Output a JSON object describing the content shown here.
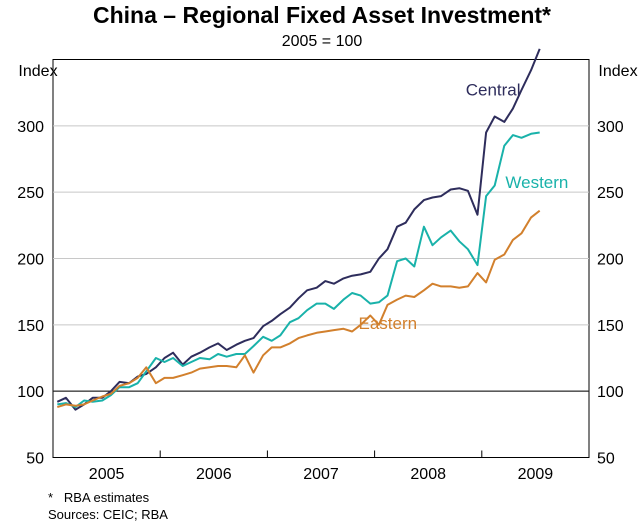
{
  "title": "China – Regional Fixed Asset Investment*",
  "subtitle": "2005 = 100",
  "notes": [
    "*   RBA estimates",
    "Sources: CEIC; RBA"
  ],
  "chart_data": {
    "type": "line",
    "title": "China – Regional Fixed Asset Investment*",
    "subtitle": "2005 = 100",
    "ylabel_left": "Index",
    "ylabel_right": "Index",
    "ylim": [
      50,
      350
    ],
    "yticks": [
      50,
      100,
      150,
      200,
      250,
      300
    ],
    "xlim": [
      2004.5,
      2009.5
    ],
    "xtick_labels": [
      {
        "label": "2005",
        "x": 2005.0
      },
      {
        "label": "2006",
        "x": 2006.0
      },
      {
        "label": "2007",
        "x": 2007.0
      },
      {
        "label": "2008",
        "x": 2008.0
      },
      {
        "label": "2009",
        "x": 2009.0
      }
    ],
    "year_boundaries": [
      2005.5,
      2006.5,
      2007.5,
      2008.5
    ],
    "reference_line": 100,
    "series": [
      {
        "name": "Central",
        "color": "#2e2d5c",
        "label_at": [
          2008.35,
          323
        ],
        "x": [
          2004.54,
          2004.62,
          2004.71,
          2004.79,
          2004.87,
          2004.96,
          2005.04,
          2005.12,
          2005.21,
          2005.29,
          2005.37,
          2005.46,
          2005.54,
          2005.62,
          2005.71,
          2005.79,
          2005.87,
          2005.96,
          2006.04,
          2006.12,
          2006.21,
          2006.29,
          2006.37,
          2006.46,
          2006.54,
          2006.62,
          2006.71,
          2006.79,
          2006.87,
          2006.96,
          2007.04,
          2007.12,
          2007.21,
          2007.29,
          2007.37,
          2007.46,
          2007.54,
          2007.62,
          2007.71,
          2007.79,
          2007.87,
          2007.96,
          2008.04,
          2008.12,
          2008.21,
          2008.29,
          2008.37,
          2008.46,
          2008.54,
          2008.62,
          2008.71,
          2008.79,
          2008.87,
          2008.96,
          2009.04
        ],
        "values": [
          92,
          95,
          86,
          90,
          95,
          95,
          100,
          107,
          106,
          111,
          113,
          118,
          125,
          129,
          120,
          126,
          129,
          133,
          136,
          131,
          135,
          138,
          140,
          149,
          153,
          158,
          163,
          170,
          176,
          178,
          183,
          181,
          185,
          187,
          188,
          190,
          200,
          207,
          224,
          227,
          237,
          244,
          246,
          247,
          252,
          253,
          251,
          233,
          295,
          307,
          303,
          313,
          327,
          342,
          358
        ]
      },
      {
        "name": "Western",
        "color": "#19b2aa",
        "label_at": [
          2008.72,
          253
        ],
        "x": [
          2004.54,
          2004.62,
          2004.71,
          2004.79,
          2004.87,
          2004.96,
          2005.04,
          2005.12,
          2005.21,
          2005.29,
          2005.37,
          2005.46,
          2005.54,
          2005.62,
          2005.71,
          2005.79,
          2005.87,
          2005.96,
          2006.04,
          2006.12,
          2006.21,
          2006.29,
          2006.37,
          2006.46,
          2006.54,
          2006.62,
          2006.71,
          2006.79,
          2006.87,
          2006.96,
          2007.04,
          2007.12,
          2007.21,
          2007.29,
          2007.37,
          2007.46,
          2007.54,
          2007.62,
          2007.71,
          2007.79,
          2007.87,
          2007.96,
          2008.04,
          2008.12,
          2008.21,
          2008.29,
          2008.37,
          2008.46,
          2008.54,
          2008.62,
          2008.71,
          2008.79,
          2008.87,
          2008.96,
          2009.04
        ],
        "values": [
          90,
          91,
          88,
          93,
          92,
          93,
          97,
          103,
          103,
          106,
          115,
          125,
          122,
          125,
          119,
          122,
          125,
          124,
          128,
          126,
          128,
          128,
          134,
          141,
          138,
          142,
          152,
          155,
          161,
          166,
          166,
          162,
          169,
          174,
          172,
          166,
          167,
          172,
          198,
          200,
          194,
          224,
          210,
          216,
          221,
          213,
          207,
          195,
          247,
          255,
          285,
          293,
          291,
          294,
          295
        ]
      },
      {
        "name": "Eastern",
        "color": "#d2802d",
        "label_at": [
          2007.35,
          147
        ],
        "x": [
          2004.54,
          2004.62,
          2004.71,
          2004.79,
          2004.87,
          2004.96,
          2005.04,
          2005.12,
          2005.21,
          2005.29,
          2005.37,
          2005.46,
          2005.54,
          2005.62,
          2005.71,
          2005.79,
          2005.87,
          2005.96,
          2006.04,
          2006.12,
          2006.21,
          2006.29,
          2006.37,
          2006.46,
          2006.54,
          2006.62,
          2006.71,
          2006.79,
          2006.87,
          2006.96,
          2007.04,
          2007.12,
          2007.21,
          2007.29,
          2007.37,
          2007.46,
          2007.54,
          2007.62,
          2007.71,
          2007.79,
          2007.87,
          2007.96,
          2008.04,
          2008.12,
          2008.21,
          2008.29,
          2008.37,
          2008.46,
          2008.54,
          2008.62,
          2008.71,
          2008.79,
          2008.87,
          2008.96,
          2009.04
        ],
        "values": [
          88,
          90,
          89,
          90,
          93,
          96,
          98,
          104,
          106,
          110,
          118,
          106,
          110,
          110,
          112,
          114,
          117,
          118,
          119,
          119,
          118,
          127,
          114,
          127,
          133,
          133,
          136,
          140,
          142,
          144,
          145,
          146,
          147,
          145,
          150,
          157,
          150,
          165,
          169,
          172,
          171,
          176,
          181,
          179,
          179,
          178,
          179,
          189,
          182,
          199,
          203,
          214,
          219,
          231,
          236
        ]
      }
    ]
  }
}
